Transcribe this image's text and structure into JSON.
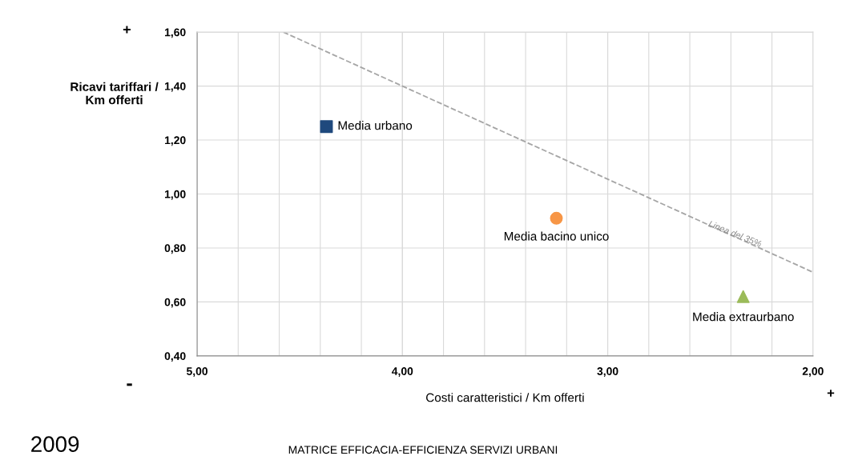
{
  "chart_data": {
    "type": "scatter",
    "title": "MATRICE EFFICACIA-EFFICIENZA SERVIZI URBANI",
    "xlabel": "Costi caratteristici / Km offerti",
    "ylabel": "Ricavi tariffari /\nKm offerti",
    "xlim": [
      5.0,
      2.0
    ],
    "xticks": [
      {
        "value": 5.0,
        "label": "5,00"
      },
      {
        "value": 4.0,
        "label": "4,00"
      },
      {
        "value": 3.0,
        "label": "3,00"
      },
      {
        "value": 2.0,
        "label": "2,00"
      }
    ],
    "ylim": [
      0.4,
      1.6
    ],
    "yticks": [
      {
        "value": 0.4,
        "label": "0,40"
      },
      {
        "value": 0.6,
        "label": "0,60"
      },
      {
        "value": 0.8,
        "label": "0,80"
      },
      {
        "value": 1.0,
        "label": "1,00"
      },
      {
        "value": 1.2,
        "label": "1,20"
      },
      {
        "value": 1.4,
        "label": "1,40"
      },
      {
        "value": 1.6,
        "label": "1,60"
      }
    ],
    "grid": true,
    "legend": false,
    "series": [
      {
        "name": "Media urbano",
        "marker": "square",
        "color": "#1f497d",
        "x": [
          4.37
        ],
        "values": [
          1.25
        ]
      },
      {
        "name": "Media bacino unico",
        "marker": "circle",
        "color": "#f79646",
        "x": [
          3.25
        ],
        "values": [
          0.91
        ]
      },
      {
        "name": "Media extraurbano",
        "marker": "triangle",
        "color": "#9bbb59",
        "x": [
          2.34
        ],
        "values": [
          0.62
        ]
      },
      {
        "type": "line",
        "line_style": "dashed",
        "marker": "none",
        "color": "#a6a6a6",
        "x": [
          4.58,
          2.0
        ],
        "values": [
          1.6,
          0.71
        ]
      }
    ],
    "annotations": [
      "Linea del 35%",
      "+",
      "-",
      "+",
      "2009"
    ]
  }
}
